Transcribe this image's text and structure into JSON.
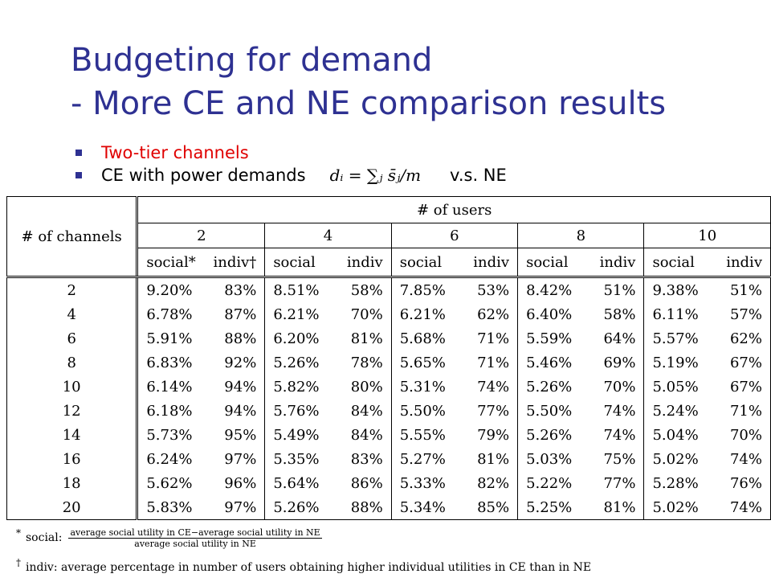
{
  "title": {
    "line1": "Budgeting for demand",
    "line2": "- More CE and NE comparison results"
  },
  "bullets": {
    "item1": "Two-tier channels",
    "item2_text": "CE with power demands",
    "item2_formula": "dᵢ = ∑ⱼ s̄ⱼ/m",
    "item2_suffix": "v.s. NE"
  },
  "table": {
    "users_header": "# of users",
    "channels_header": "# of channels",
    "user_counts": [
      "2",
      "4",
      "6",
      "8",
      "10"
    ],
    "sub_social_first": "social*",
    "sub_indiv_first": "indiv†",
    "sub_social": "social",
    "sub_indiv": "indiv",
    "rows": [
      {
        "ch": "2",
        "v": [
          "9.20%",
          "83%",
          "8.51%",
          "58%",
          "7.85%",
          "53%",
          "8.42%",
          "51%",
          "9.38%",
          "51%"
        ]
      },
      {
        "ch": "4",
        "v": [
          "6.78%",
          "87%",
          "6.21%",
          "70%",
          "6.21%",
          "62%",
          "6.40%",
          "58%",
          "6.11%",
          "57%"
        ]
      },
      {
        "ch": "6",
        "v": [
          "5.91%",
          "88%",
          "6.20%",
          "81%",
          "5.68%",
          "71%",
          "5.59%",
          "64%",
          "5.57%",
          "62%"
        ]
      },
      {
        "ch": "8",
        "v": [
          "6.83%",
          "92%",
          "5.26%",
          "78%",
          "5.65%",
          "71%",
          "5.46%",
          "69%",
          "5.19%",
          "67%"
        ]
      },
      {
        "ch": "10",
        "v": [
          "6.14%",
          "94%",
          "5.82%",
          "80%",
          "5.31%",
          "74%",
          "5.26%",
          "70%",
          "5.05%",
          "67%"
        ]
      },
      {
        "ch": "12",
        "v": [
          "6.18%",
          "94%",
          "5.76%",
          "84%",
          "5.50%",
          "77%",
          "5.50%",
          "74%",
          "5.24%",
          "71%"
        ]
      },
      {
        "ch": "14",
        "v": [
          "5.73%",
          "95%",
          "5.49%",
          "84%",
          "5.55%",
          "79%",
          "5.26%",
          "74%",
          "5.04%",
          "70%"
        ]
      },
      {
        "ch": "16",
        "v": [
          "6.24%",
          "97%",
          "5.35%",
          "83%",
          "5.27%",
          "81%",
          "5.03%",
          "75%",
          "5.02%",
          "74%"
        ]
      },
      {
        "ch": "18",
        "v": [
          "5.62%",
          "96%",
          "5.64%",
          "86%",
          "5.33%",
          "82%",
          "5.22%",
          "77%",
          "5.28%",
          "76%"
        ]
      },
      {
        "ch": "20",
        "v": [
          "5.83%",
          "97%",
          "5.26%",
          "88%",
          "5.34%",
          "85%",
          "5.25%",
          "81%",
          "5.02%",
          "74%"
        ]
      }
    ]
  },
  "footnotes": {
    "social_symbol": "*",
    "social_label": "social:",
    "social_num": "average social utility in CE−average social utility in NE",
    "social_den": "average social utility in NE",
    "indiv_symbol": "†",
    "indiv_text": "indiv: average percentage in number of users obtaining higher individual utilities in CE than in NE"
  },
  "colors": {
    "title": "#2e3192",
    "bullet_square": "#2e3192",
    "first_bullet": "#e00000"
  }
}
